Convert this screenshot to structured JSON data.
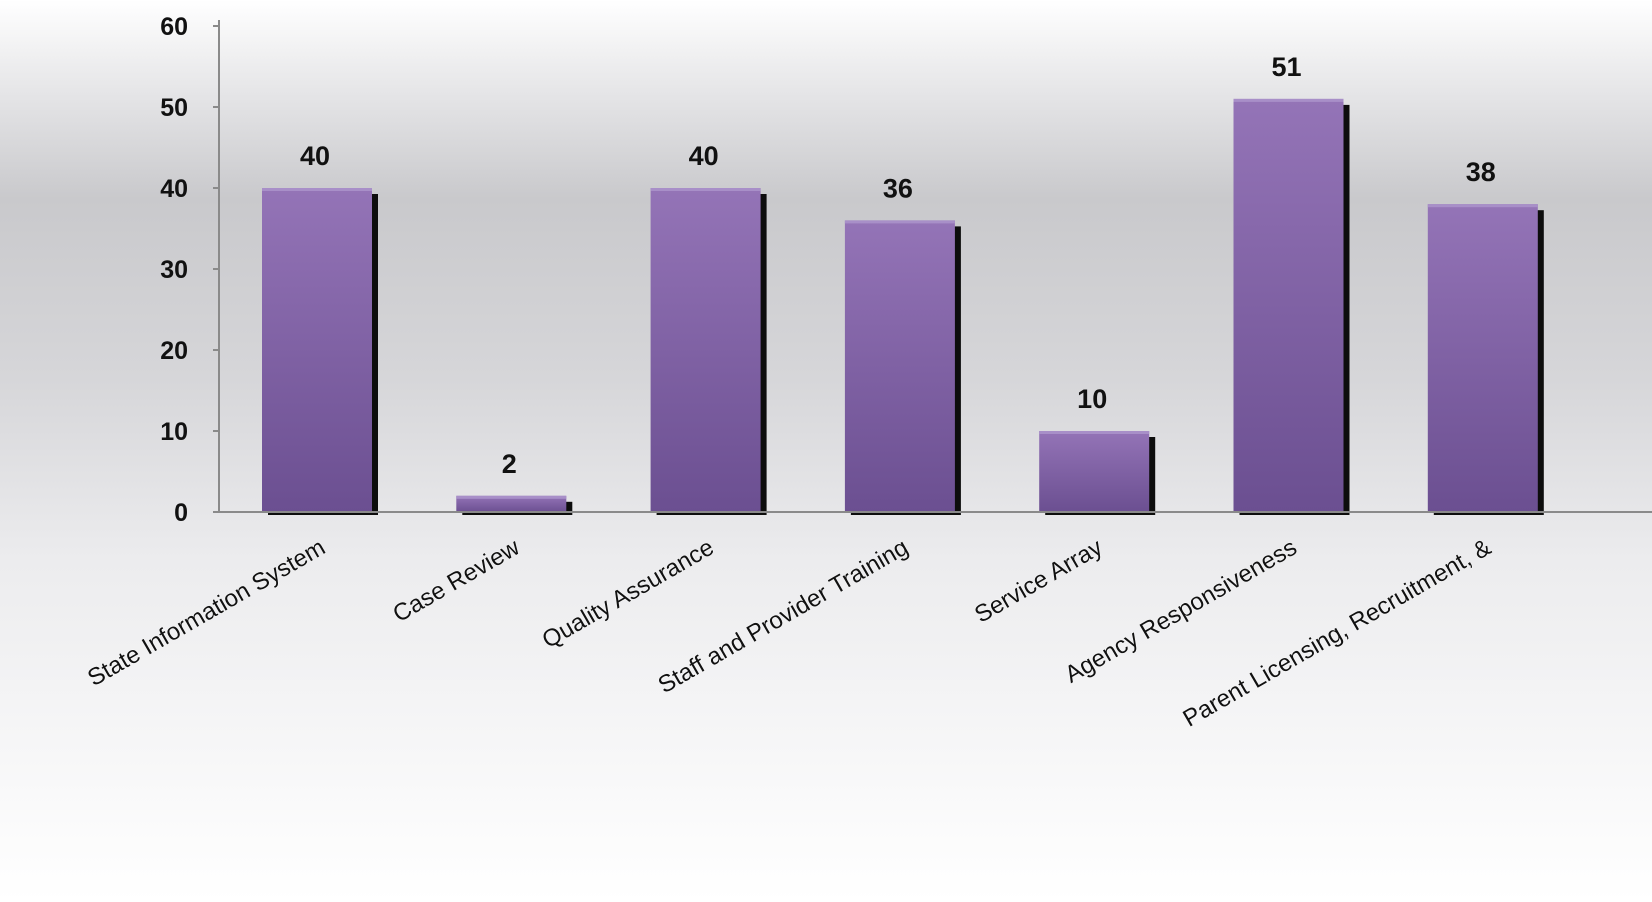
{
  "chart_data": {
    "type": "bar",
    "categories": [
      "State Information System",
      "Case Review",
      "Quality Assurance",
      "Staff and Provider Training",
      "Service Array",
      "Agency Responsiveness",
      "Parent Licensing, Recruitment, &"
    ],
    "values": [
      40,
      2,
      40,
      36,
      10,
      51,
      38
    ],
    "ylim": [
      0,
      60
    ],
    "yticks": [
      0,
      10,
      20,
      30,
      40,
      50,
      60
    ],
    "title": "",
    "xlabel": "",
    "ylabel": "",
    "grid": false,
    "legend": "none",
    "data_labels": true,
    "colors": {
      "bar_top": "#9474b7",
      "bar_bottom": "#6b4f91",
      "bar_shadow": "#0d0d0d",
      "axis": "#8a8a8a",
      "text": "#111111"
    }
  }
}
